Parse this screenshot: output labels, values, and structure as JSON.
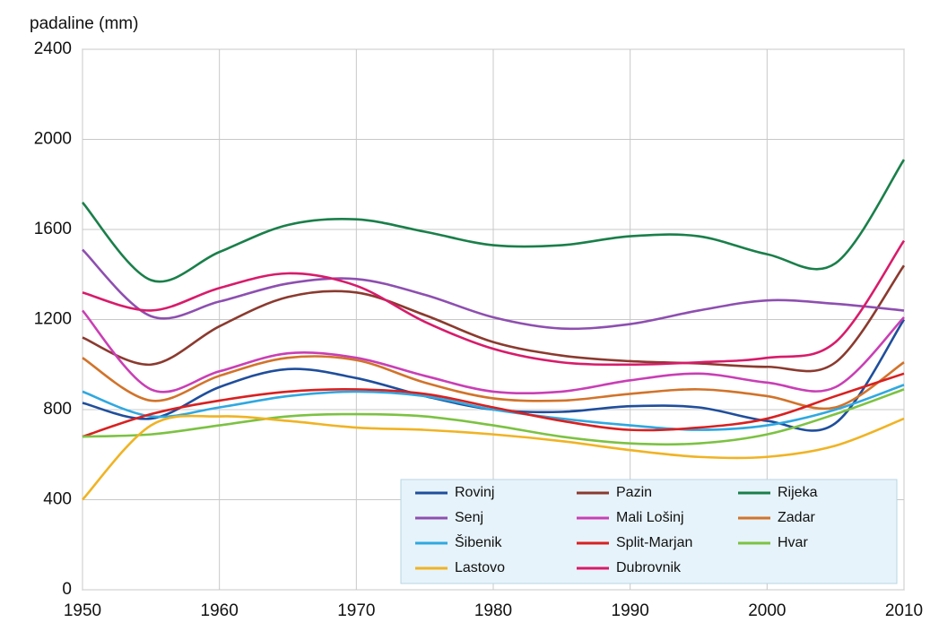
{
  "chart_data": {
    "type": "line",
    "y_label": "padaline (mm)",
    "x": [
      1950,
      1955,
      1960,
      1965,
      1970,
      1975,
      1980,
      1985,
      1990,
      1995,
      2000,
      2005,
      2010
    ],
    "xlim": [
      1950,
      2010
    ],
    "xticks": [
      1950,
      1960,
      1970,
      1980,
      1990,
      2000,
      2010
    ],
    "ylim": [
      0,
      2400
    ],
    "yticks": [
      0,
      400,
      800,
      1200,
      1600,
      2000,
      2400
    ],
    "grid": true,
    "legend": "bottom-right",
    "series": [
      {
        "name": "Rovinj",
        "color": "#1f4e9c",
        "values": [
          830,
          760,
          900,
          980,
          940,
          860,
          800,
          790,
          815,
          810,
          750,
          740,
          1200
        ]
      },
      {
        "name": "Pazin",
        "color": "#8b3a2f",
        "values": [
          1120,
          1000,
          1170,
          1300,
          1320,
          1220,
          1100,
          1040,
          1015,
          1005,
          990,
          1010,
          1440
        ]
      },
      {
        "name": "Rijeka",
        "color": "#1a7f4a",
        "values": [
          1720,
          1375,
          1500,
          1620,
          1645,
          1590,
          1530,
          1530,
          1570,
          1570,
          1490,
          1450,
          1910
        ]
      },
      {
        "name": "Senj",
        "color": "#8e4fb0",
        "values": [
          1510,
          1215,
          1280,
          1360,
          1380,
          1310,
          1210,
          1160,
          1180,
          1240,
          1285,
          1270,
          1240
        ]
      },
      {
        "name": "Mali Lošinj",
        "color": "#c93fb5",
        "values": [
          1240,
          890,
          970,
          1050,
          1030,
          950,
          880,
          880,
          930,
          960,
          920,
          900,
          1210
        ]
      },
      {
        "name": "Zadar",
        "color": "#d2732a",
        "values": [
          1030,
          840,
          950,
          1030,
          1020,
          920,
          850,
          840,
          870,
          890,
          860,
          810,
          1010
        ]
      },
      {
        "name": "Šibenik",
        "color": "#2fa8e0",
        "values": [
          880,
          770,
          810,
          860,
          880,
          860,
          800,
          760,
          730,
          710,
          730,
          800,
          910
        ]
      },
      {
        "name": "Split-Marjan",
        "color": "#d92020",
        "values": [
          680,
          780,
          840,
          880,
          890,
          870,
          810,
          750,
          710,
          720,
          760,
          860,
          960
        ]
      },
      {
        "name": "Hvar",
        "color": "#7cc242",
        "values": [
          680,
          690,
          730,
          770,
          780,
          770,
          730,
          680,
          650,
          650,
          690,
          780,
          890
        ]
      },
      {
        "name": "Lastovo",
        "color": "#f0b323",
        "values": [
          400,
          730,
          770,
          750,
          720,
          710,
          690,
          660,
          620,
          590,
          590,
          640,
          760
        ]
      },
      {
        "name": "Dubrovnik",
        "color": "#d81b6a",
        "values": [
          1320,
          1240,
          1340,
          1405,
          1350,
          1190,
          1070,
          1010,
          1000,
          1010,
          1030,
          1100,
          1550
        ]
      }
    ]
  }
}
